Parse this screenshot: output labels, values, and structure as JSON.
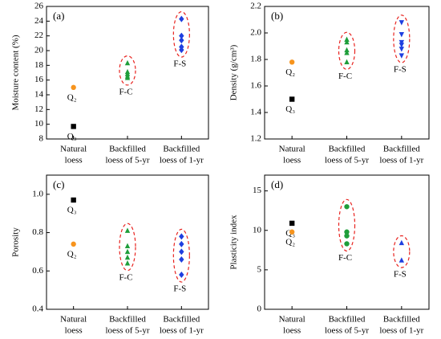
{
  "chart_data": [
    {
      "type": "scatter",
      "panel_label": "(a)",
      "ylabel": "Moisture content (%)",
      "categories": [
        [
          "Natural",
          "loess"
        ],
        [
          "Backfilled",
          "loess of 5-yr"
        ],
        [
          "Backfilled",
          "loess of 1-yr"
        ]
      ],
      "ylim": [
        8,
        26
      ],
      "yticks": [
        8,
        10,
        12,
        14,
        16,
        18,
        20,
        22,
        24,
        26
      ],
      "series": [
        {
          "name": "Q₂",
          "color": "#f7941d",
          "marker": "circle",
          "values": [
            [
              15.0
            ],
            null,
            null
          ]
        },
        {
          "name": "Q₃",
          "color": "#000000",
          "marker": "square",
          "values": [
            [
              9.7
            ],
            null,
            null
          ]
        },
        {
          "name": "F-C",
          "color": "#1e9e3a",
          "marker": "triangle",
          "values": [
            null,
            [
              18.3,
              17.1,
              16.8,
              16.5,
              16.3
            ],
            null
          ]
        },
        {
          "name": "F-S",
          "color": "#1f3fe0",
          "marker": "diamond",
          "values": [
            null,
            null,
            [
              24.3,
              22.0,
              21.4,
              20.5,
              20.1
            ]
          ]
        }
      ]
    },
    {
      "type": "scatter",
      "panel_label": "(b)",
      "ylabel": "Density (g/cm³)",
      "categories": [
        [
          "Natural",
          "loess"
        ],
        [
          "Backfilled",
          "loess of 5-yr"
        ],
        [
          "Backfilled",
          "loess of 1-yr"
        ]
      ],
      "ylim": [
        1.2,
        2.2
      ],
      "yticks": [
        1.2,
        1.4,
        1.6,
        1.8,
        {
          "value": 2,
          "label": "2.0"
        },
        2.2
      ],
      "series": [
        {
          "name": "Q₂",
          "color": "#f7941d",
          "marker": "circle",
          "values": [
            [
              1.78
            ],
            null,
            null
          ]
        },
        {
          "name": "Q₃",
          "color": "#000000",
          "marker": "square",
          "values": [
            [
              1.5
            ],
            null,
            null
          ]
        },
        {
          "name": "F-C",
          "color": "#1e9e3a",
          "marker": "triangle",
          "values": [
            null,
            [
              1.95,
              1.93,
              1.87,
              1.85,
              1.78
            ],
            null
          ]
        },
        {
          "name": "F-S",
          "color": "#1f3fe0",
          "marker": "triangle-down",
          "values": [
            null,
            null,
            [
              2.08,
              1.99,
              1.93,
              1.91,
              1.88,
              1.83
            ]
          ]
        }
      ]
    },
    {
      "type": "scatter",
      "panel_label": "(c)",
      "ylabel": "Porosity",
      "categories": [
        [
          "Natural",
          "loess"
        ],
        [
          "Backfilled",
          "loess of 5-yr"
        ],
        [
          "Backfilled",
          "loess of 1-yr"
        ]
      ],
      "ylim": [
        0.4,
        1.1
      ],
      "yticks": [
        0.4,
        0.6,
        0.8,
        {
          "value": 1,
          "label": "1.0"
        }
      ],
      "series": [
        {
          "name": "Q₃",
          "color": "#000000",
          "marker": "square",
          "values": [
            [
              0.97
            ],
            null,
            null
          ]
        },
        {
          "name": "Q₂",
          "color": "#f7941d",
          "marker": "circle",
          "values": [
            [
              0.74
            ],
            null,
            null
          ]
        },
        {
          "name": "F-C",
          "color": "#1e9e3a",
          "marker": "triangle",
          "values": [
            null,
            [
              0.81,
              0.73,
              0.7,
              0.67,
              0.64
            ],
            null
          ]
        },
        {
          "name": "F-S",
          "color": "#1f3fe0",
          "marker": "diamond",
          "values": [
            null,
            null,
            [
              0.78,
              0.74,
              0.7,
              0.66,
              0.58
            ]
          ]
        }
      ]
    },
    {
      "type": "scatter",
      "panel_label": "(d)",
      "ylabel": "Plasticity index",
      "categories": [
        [
          "Natural",
          "loess"
        ],
        [
          "Backfilled",
          "loess of 5-yr"
        ],
        [
          "Backfilled",
          "loess of 1-yr"
        ]
      ],
      "ylim": [
        0,
        17
      ],
      "yticks": [
        0,
        5,
        10,
        15
      ],
      "series": [
        {
          "name": "Q₃",
          "color": "#000000",
          "marker": "square",
          "values": [
            [
              10.9
            ],
            null,
            null
          ]
        },
        {
          "name": "Q₂",
          "color": "#f7941d",
          "marker": "circle",
          "values": [
            [
              9.8
            ],
            null,
            null
          ]
        },
        {
          "name": "F-C",
          "color": "#1e9e3a",
          "marker": "circle",
          "values": [
            null,
            [
              13.0,
              9.8,
              9.3,
              8.3
            ],
            null
          ]
        },
        {
          "name": "F-S",
          "color": "#1f3fe0",
          "marker": "triangle",
          "values": [
            null,
            null,
            [
              8.4,
              6.2
            ]
          ]
        }
      ]
    }
  ]
}
